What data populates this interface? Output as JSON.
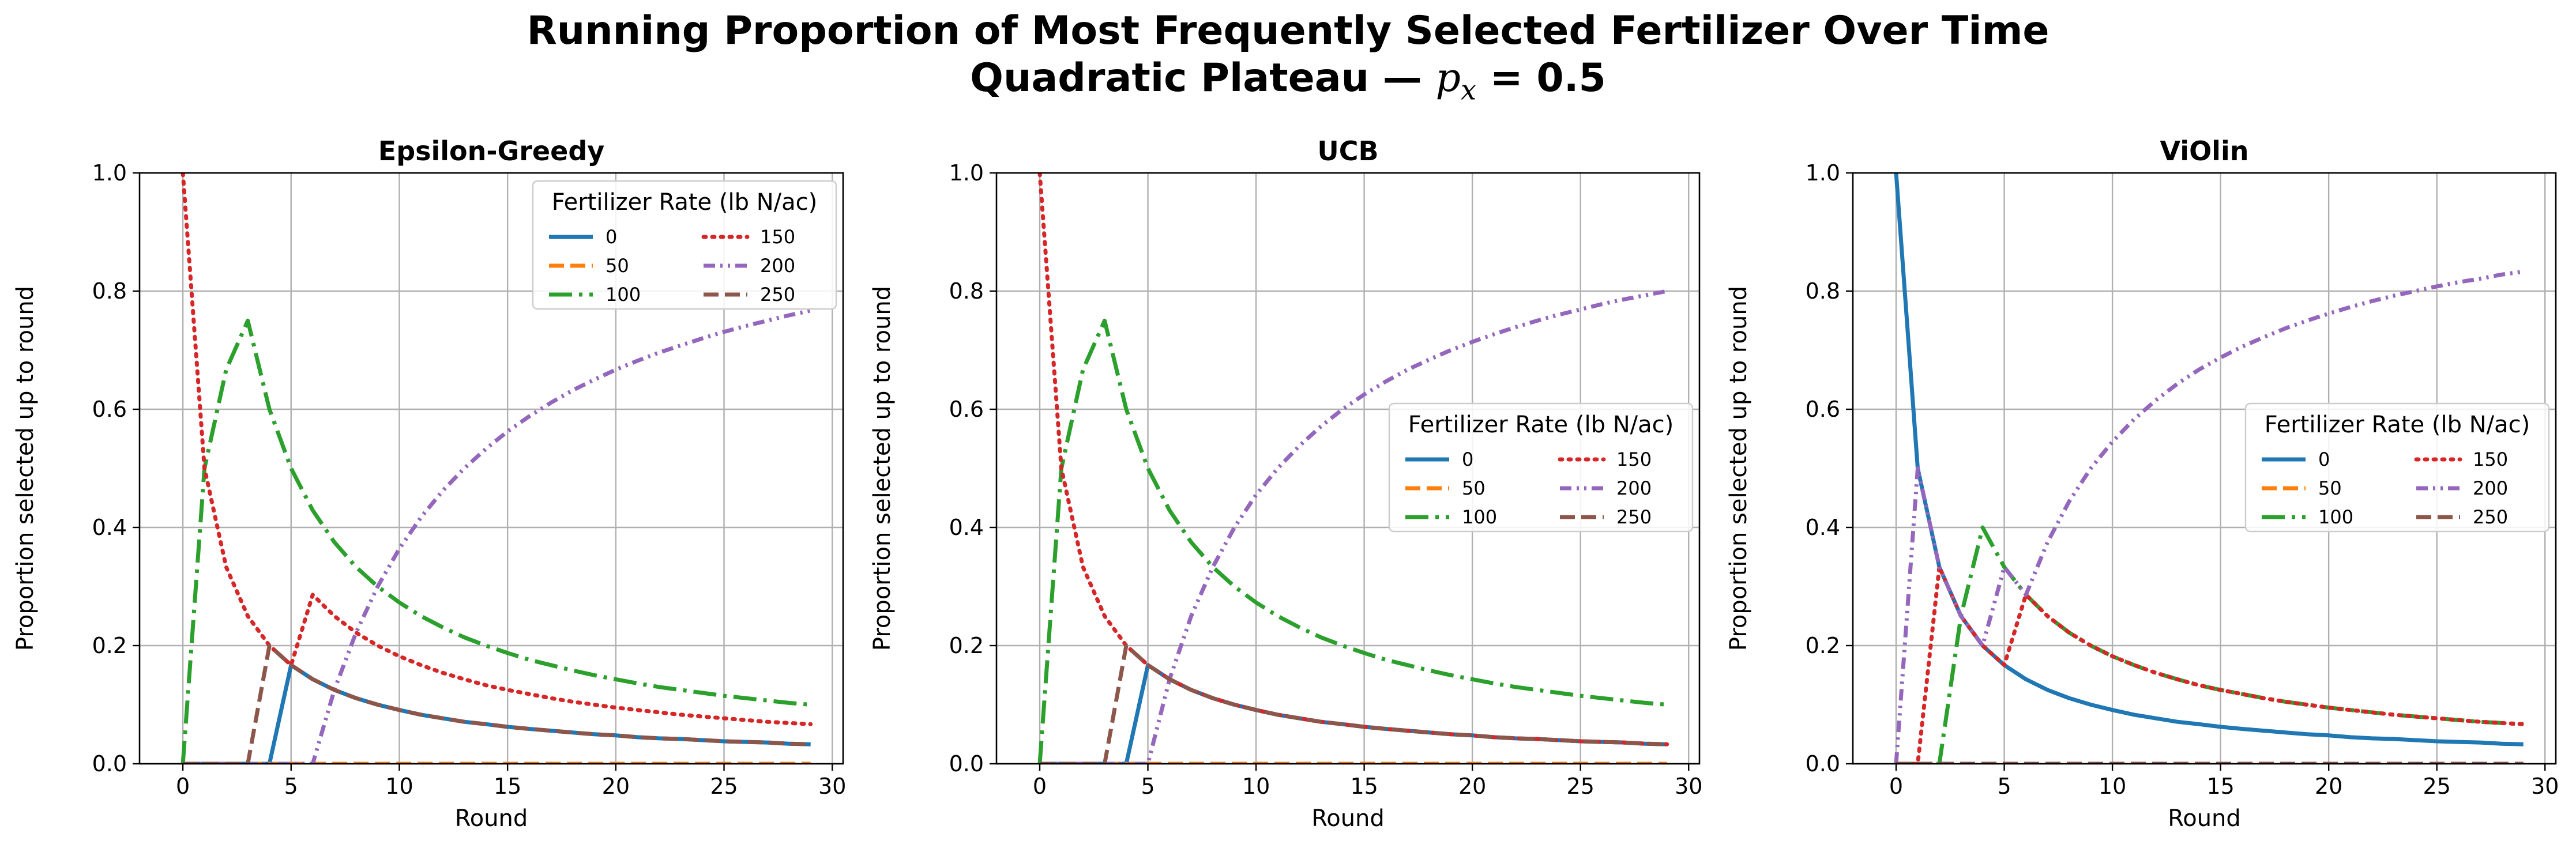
{
  "figure": {
    "title_line1": "Running Proportion of Most Frequently Selected Fertilizer Over Time",
    "title_line2_prefix": "Quadratic Plateau — ",
    "title_line2_var": "p",
    "title_line2_sub": "x",
    "title_line2_suffix": " = 0.5"
  },
  "colors": {
    "0": "#1f77b4",
    "50": "#ff7f0e",
    "100": "#2ca02c",
    "150": "#d62728",
    "200": "#9467bd",
    "250": "#8c564b",
    "grid": "#b0b0b0",
    "axis": "#000000"
  },
  "chart_data": [
    {
      "type": "line",
      "title": "Epsilon-Greedy",
      "xlabel": "Round",
      "ylabel": "Proportion selected up to round",
      "xlim": [
        -2,
        30.5
      ],
      "ylim": [
        0,
        1.0
      ],
      "xticks": [
        0,
        5,
        10,
        15,
        20,
        25,
        30
      ],
      "yticks": [
        0.0,
        0.2,
        0.4,
        0.6,
        0.8,
        1.0
      ],
      "grid": true,
      "legend_title": "Fertilizer Rate (lb N/ac)",
      "legend_position": "top-right",
      "series": [
        {
          "name": "0",
          "x": [
            0,
            1,
            2,
            3,
            4,
            5,
            6,
            7,
            8,
            9,
            10,
            11,
            12,
            13,
            14,
            15,
            16,
            17,
            18,
            19,
            20,
            21,
            22,
            23,
            24,
            25,
            26,
            27,
            28,
            29
          ],
          "values": [
            0,
            0,
            0,
            0,
            0,
            0.167,
            0.143,
            0.125,
            0.111,
            0.1,
            0.091,
            0.083,
            0.077,
            0.071,
            0.067,
            0.0625,
            0.059,
            0.056,
            0.053,
            0.05,
            0.048,
            0.045,
            0.043,
            0.042,
            0.04,
            0.038,
            0.037,
            0.036,
            0.034,
            0.033
          ]
        },
        {
          "name": "50",
          "x": [
            0,
            29
          ],
          "values": [
            0,
            0
          ]
        },
        {
          "name": "100",
          "x": [
            0,
            1,
            2,
            3,
            4,
            5,
            6,
            7,
            8,
            9,
            10,
            11,
            12,
            13,
            14,
            15,
            16,
            17,
            18,
            19,
            20,
            21,
            22,
            23,
            24,
            25,
            26,
            27,
            28,
            29
          ],
          "values": [
            0,
            0.5,
            0.667,
            0.75,
            0.6,
            0.5,
            0.429,
            0.375,
            0.333,
            0.3,
            0.273,
            0.25,
            0.231,
            0.214,
            0.2,
            0.1875,
            0.176,
            0.167,
            0.158,
            0.15,
            0.143,
            0.136,
            0.13,
            0.125,
            0.12,
            0.115,
            0.111,
            0.107,
            0.103,
            0.1
          ]
        },
        {
          "name": "150",
          "x": [
            0,
            1,
            2,
            3,
            4,
            5,
            6,
            7,
            8,
            9,
            10,
            11,
            12,
            13,
            14,
            15,
            16,
            17,
            18,
            19,
            20,
            21,
            22,
            23,
            24,
            25,
            26,
            27,
            28,
            29
          ],
          "values": [
            1.0,
            0.5,
            0.333,
            0.25,
            0.2,
            0.167,
            0.286,
            0.25,
            0.222,
            0.2,
            0.182,
            0.167,
            0.154,
            0.143,
            0.133,
            0.125,
            0.118,
            0.111,
            0.105,
            0.1,
            0.095,
            0.091,
            0.087,
            0.083,
            0.08,
            0.077,
            0.074,
            0.071,
            0.069,
            0.067
          ]
        },
        {
          "name": "200",
          "x": [
            0,
            1,
            2,
            3,
            4,
            5,
            6,
            7,
            8,
            9,
            10,
            11,
            12,
            13,
            14,
            15,
            16,
            17,
            18,
            19,
            20,
            21,
            22,
            23,
            24,
            25,
            26,
            27,
            28,
            29
          ],
          "values": [
            0,
            0,
            0,
            0,
            0,
            0,
            0,
            0.125,
            0.222,
            0.3,
            0.364,
            0.417,
            0.462,
            0.5,
            0.533,
            0.5625,
            0.588,
            0.611,
            0.632,
            0.65,
            0.667,
            0.682,
            0.696,
            0.708,
            0.72,
            0.731,
            0.741,
            0.75,
            0.759,
            0.767
          ]
        },
        {
          "name": "250",
          "x": [
            0,
            1,
            2,
            3,
            4,
            5,
            6,
            7,
            8,
            9,
            10,
            11,
            12,
            13,
            14,
            15,
            16,
            17,
            18,
            19,
            20,
            21,
            22,
            23,
            24,
            25,
            26,
            27,
            28,
            29
          ],
          "values": [
            0,
            0,
            0,
            0,
            0.2,
            0.167,
            0.143,
            0.125,
            0.111,
            0.1,
            0.091,
            0.083,
            0.077,
            0.071,
            0.067,
            0.0625,
            0.059,
            0.056,
            0.053,
            0.05,
            0.048,
            0.045,
            0.043,
            0.042,
            0.04,
            0.038,
            0.037,
            0.036,
            0.034,
            0.033
          ]
        }
      ]
    },
    {
      "type": "line",
      "title": "UCB",
      "xlabel": "Round",
      "ylabel": "Proportion selected up to round",
      "xlim": [
        -2,
        30.5
      ],
      "ylim": [
        0,
        1.0
      ],
      "xticks": [
        0,
        5,
        10,
        15,
        20,
        25,
        30
      ],
      "yticks": [
        0.0,
        0.2,
        0.4,
        0.6,
        0.8,
        1.0
      ],
      "grid": true,
      "legend_title": "Fertilizer Rate (lb N/ac)",
      "legend_position": "center-right",
      "series": [
        {
          "name": "0",
          "x": [
            0,
            1,
            2,
            3,
            4,
            5,
            6,
            7,
            8,
            9,
            10,
            11,
            12,
            13,
            14,
            15,
            16,
            17,
            18,
            19,
            20,
            21,
            22,
            23,
            24,
            25,
            26,
            27,
            28,
            29
          ],
          "values": [
            0,
            0,
            0,
            0,
            0,
            0.167,
            0.143,
            0.125,
            0.111,
            0.1,
            0.091,
            0.083,
            0.077,
            0.071,
            0.067,
            0.0625,
            0.059,
            0.056,
            0.053,
            0.05,
            0.048,
            0.045,
            0.043,
            0.042,
            0.04,
            0.038,
            0.037,
            0.036,
            0.034,
            0.033
          ]
        },
        {
          "name": "50",
          "x": [
            0,
            29
          ],
          "values": [
            0,
            0
          ]
        },
        {
          "name": "100",
          "x": [
            0,
            1,
            2,
            3,
            4,
            5,
            6,
            7,
            8,
            9,
            10,
            11,
            12,
            13,
            14,
            15,
            16,
            17,
            18,
            19,
            20,
            21,
            22,
            23,
            24,
            25,
            26,
            27,
            28,
            29
          ],
          "values": [
            0,
            0.5,
            0.667,
            0.75,
            0.6,
            0.5,
            0.429,
            0.375,
            0.333,
            0.3,
            0.273,
            0.25,
            0.231,
            0.214,
            0.2,
            0.1875,
            0.176,
            0.167,
            0.158,
            0.15,
            0.143,
            0.136,
            0.13,
            0.125,
            0.12,
            0.115,
            0.111,
            0.107,
            0.103,
            0.1
          ]
        },
        {
          "name": "150",
          "x": [
            0,
            1,
            2,
            3,
            4,
            5,
            6,
            7,
            8,
            9,
            10,
            11,
            12,
            13,
            14,
            15,
            16,
            17,
            18,
            19,
            20,
            21,
            22,
            23,
            24,
            25,
            26,
            27,
            28,
            29
          ],
          "values": [
            1.0,
            0.5,
            0.333,
            0.25,
            0.2,
            0.167,
            0.143,
            0.125,
            0.111,
            0.1,
            0.091,
            0.083,
            0.077,
            0.071,
            0.067,
            0.0625,
            0.059,
            0.056,
            0.053,
            0.05,
            0.048,
            0.045,
            0.043,
            0.042,
            0.04,
            0.038,
            0.037,
            0.036,
            0.034,
            0.033
          ]
        },
        {
          "name": "200",
          "x": [
            0,
            1,
            2,
            3,
            4,
            5,
            6,
            7,
            8,
            9,
            10,
            11,
            12,
            13,
            14,
            15,
            16,
            17,
            18,
            19,
            20,
            21,
            22,
            23,
            24,
            25,
            26,
            27,
            28,
            29
          ],
          "values": [
            0,
            0,
            0,
            0,
            0,
            0,
            0.143,
            0.25,
            0.333,
            0.4,
            0.455,
            0.5,
            0.538,
            0.571,
            0.6,
            0.625,
            0.647,
            0.667,
            0.684,
            0.7,
            0.714,
            0.727,
            0.739,
            0.75,
            0.76,
            0.769,
            0.778,
            0.786,
            0.793,
            0.8
          ]
        },
        {
          "name": "250",
          "x": [
            0,
            1,
            2,
            3,
            4,
            5,
            6,
            7,
            8,
            9,
            10,
            11,
            12,
            13,
            14,
            15,
            16,
            17,
            18,
            19,
            20,
            21,
            22,
            23,
            24,
            25,
            26,
            27,
            28,
            29
          ],
          "values": [
            0,
            0,
            0,
            0,
            0.2,
            0.167,
            0.143,
            0.125,
            0.111,
            0.1,
            0.091,
            0.083,
            0.077,
            0.071,
            0.067,
            0.0625,
            0.059,
            0.056,
            0.053,
            0.05,
            0.048,
            0.045,
            0.043,
            0.042,
            0.04,
            0.038,
            0.037,
            0.036,
            0.034,
            0.033
          ]
        }
      ]
    },
    {
      "type": "line",
      "title": "ViOlin",
      "xlabel": "Round",
      "ylabel": "Proportion selected up to round",
      "xlim": [
        -2,
        30.5
      ],
      "ylim": [
        0,
        1.0
      ],
      "xticks": [
        0,
        5,
        10,
        15,
        20,
        25,
        30
      ],
      "yticks": [
        0.0,
        0.2,
        0.4,
        0.6,
        0.8,
        1.0
      ],
      "grid": true,
      "legend_title": "Fertilizer Rate (lb N/ac)",
      "legend_position": "center-right",
      "series": [
        {
          "name": "0",
          "x": [
            0,
            1,
            2,
            3,
            4,
            5,
            6,
            7,
            8,
            9,
            10,
            11,
            12,
            13,
            14,
            15,
            16,
            17,
            18,
            19,
            20,
            21,
            22,
            23,
            24,
            25,
            26,
            27,
            28,
            29
          ],
          "values": [
            1.0,
            0.5,
            0.333,
            0.25,
            0.2,
            0.167,
            0.143,
            0.125,
            0.111,
            0.1,
            0.091,
            0.083,
            0.077,
            0.071,
            0.067,
            0.0625,
            0.059,
            0.056,
            0.053,
            0.05,
            0.048,
            0.045,
            0.043,
            0.042,
            0.04,
            0.038,
            0.037,
            0.036,
            0.034,
            0.033
          ]
        },
        {
          "name": "50",
          "x": [
            0,
            29
          ],
          "values": [
            0,
            0
          ]
        },
        {
          "name": "100",
          "x": [
            0,
            1,
            2,
            3,
            4,
            5,
            6,
            7,
            8,
            9,
            10,
            11,
            12,
            13,
            14,
            15,
            16,
            17,
            18,
            19,
            20,
            21,
            22,
            23,
            24,
            25,
            26,
            27,
            28,
            29
          ],
          "values": [
            0,
            0,
            0,
            0.25,
            0.4,
            0.333,
            0.286,
            0.25,
            0.222,
            0.2,
            0.182,
            0.167,
            0.154,
            0.143,
            0.133,
            0.125,
            0.118,
            0.111,
            0.105,
            0.1,
            0.095,
            0.091,
            0.087,
            0.083,
            0.08,
            0.077,
            0.074,
            0.071,
            0.069,
            0.067
          ]
        },
        {
          "name": "150",
          "x": [
            0,
            1,
            2,
            3,
            4,
            5,
            6,
            7,
            8,
            9,
            10,
            11,
            12,
            13,
            14,
            15,
            16,
            17,
            18,
            19,
            20,
            21,
            22,
            23,
            24,
            25,
            26,
            27,
            28,
            29
          ],
          "values": [
            0,
            0,
            0.333,
            0.25,
            0.2,
            0.167,
            0.286,
            0.25,
            0.222,
            0.2,
            0.182,
            0.167,
            0.154,
            0.143,
            0.133,
            0.125,
            0.118,
            0.111,
            0.105,
            0.1,
            0.095,
            0.091,
            0.087,
            0.083,
            0.08,
            0.077,
            0.074,
            0.071,
            0.069,
            0.067
          ]
        },
        {
          "name": "200",
          "x": [
            0,
            1,
            2,
            3,
            4,
            5,
            6,
            7,
            8,
            9,
            10,
            11,
            12,
            13,
            14,
            15,
            16,
            17,
            18,
            19,
            20,
            21,
            22,
            23,
            24,
            25,
            26,
            27,
            28,
            29
          ],
          "values": [
            0,
            0.5,
            0.333,
            0.25,
            0.2,
            0.333,
            0.286,
            0.375,
            0.444,
            0.5,
            0.545,
            0.583,
            0.615,
            0.643,
            0.667,
            0.6875,
            0.706,
            0.722,
            0.737,
            0.75,
            0.762,
            0.773,
            0.783,
            0.792,
            0.8,
            0.808,
            0.815,
            0.821,
            0.828,
            0.833
          ]
        },
        {
          "name": "250",
          "x": [
            0,
            29
          ],
          "values": [
            0,
            0
          ]
        }
      ]
    }
  ]
}
